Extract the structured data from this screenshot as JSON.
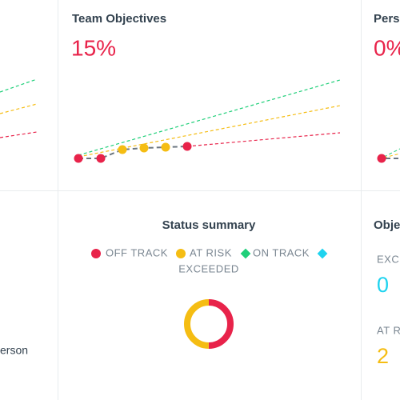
{
  "left_panel": {
    "person_label": "erson"
  },
  "team_objectives": {
    "title": "Team Objectives",
    "percent": "15%"
  },
  "personal_objectives": {
    "title": "Pers",
    "percent": "0%"
  },
  "status_summary": {
    "title": "Status summary",
    "legend": [
      {
        "label": "OFF TRACK",
        "color": "#e8234a",
        "shape": "circle"
      },
      {
        "label": "AT RISK",
        "color": "#f5bd13",
        "shape": "circle"
      },
      {
        "label": "ON TRACK",
        "color": "#1fcf79",
        "shape": "diamond"
      },
      {
        "label": "EXCEEDED",
        "color": "#1fd3ef",
        "shape": "diamond"
      }
    ],
    "donut": [
      {
        "value": 2,
        "color": "#e8234a"
      },
      {
        "value": 2,
        "color": "#f5bd13"
      }
    ]
  },
  "objective_counts": {
    "title": "Obje",
    "items": [
      {
        "label": "EXCE",
        "count": "0",
        "color": "#1fd3ef"
      },
      {
        "label": "AT R",
        "count": "2",
        "color": "#f5bd13"
      }
    ]
  }
}
